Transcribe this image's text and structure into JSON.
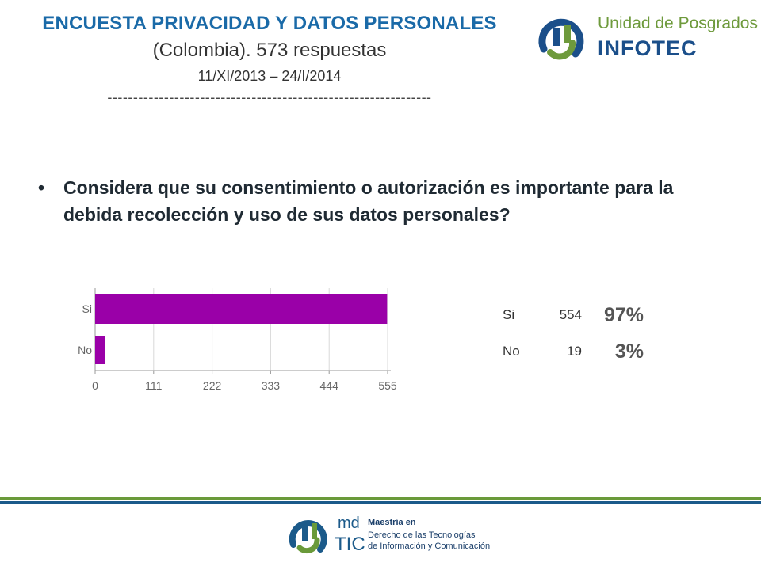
{
  "header": {
    "title": "ENCUESTA PRIVACIDAD Y DATOS PERSONALES",
    "subtitle": "(Colombia). 573 respuestas",
    "dates": "11/XI/2013 – 24/I/2014",
    "separator": "---------------------------------------------------------------"
  },
  "logo_top": {
    "line1": "Unidad de Posgrados",
    "line2": "INFOTEC",
    "colors": {
      "green": "#6e9a3c",
      "blue": "#1b4f8a"
    }
  },
  "question": {
    "bullet": "•",
    "text": "Considera que su consentimiento o autorización es importante para la debida recolección y uso de sus datos personales?"
  },
  "chart_data": {
    "type": "bar",
    "orientation": "horizontal",
    "categories": [
      "Si",
      "No"
    ],
    "values": [
      554,
      19
    ],
    "xlim": [
      0,
      555
    ],
    "xticks": [
      "0",
      "111",
      "222",
      "333",
      "444",
      "555"
    ],
    "grid": true,
    "bar_color": "#9a00a8",
    "title": "",
    "xlabel": "",
    "ylabel": ""
  },
  "summary_table": {
    "rows": [
      {
        "label": "Si",
        "count": "554",
        "percent": "97%"
      },
      {
        "label": "No",
        "count": "19",
        "percent": "3%"
      }
    ]
  },
  "logo_bottom": {
    "md": "md",
    "tic": "TIC",
    "line1": "Maestría en",
    "line2": "Derecho de las Tecnologías",
    "line3": "de Información y Comunicación"
  }
}
